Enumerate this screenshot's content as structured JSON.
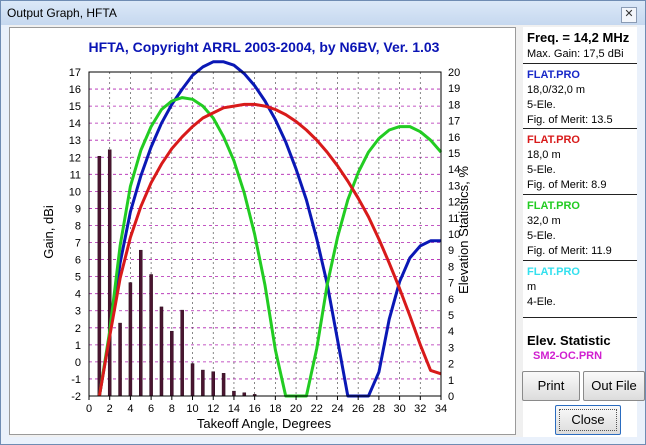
{
  "window": {
    "title": "Output Graph, HFTA",
    "close_glyph": "✕"
  },
  "chart_data": {
    "type": "line",
    "title": "HFTA, Copyright ARRL 2003-2004, by N6BV, Ver. 1.03",
    "xlabel": "Takeoff Angle, Degrees",
    "ylabel": "Gain, dBi",
    "y2label": "Elevation Statistics, %",
    "xlim": [
      0,
      34
    ],
    "ylim": [
      -2,
      17
    ],
    "y2lim": [
      0,
      20
    ],
    "x_ticks": [
      0,
      2,
      4,
      6,
      8,
      10,
      12,
      14,
      16,
      18,
      20,
      22,
      24,
      26,
      28,
      30,
      32,
      34
    ],
    "y_ticks": [
      -2,
      -1,
      0,
      1,
      2,
      3,
      4,
      5,
      6,
      7,
      8,
      9,
      10,
      11,
      12,
      13,
      14,
      15,
      16,
      17
    ],
    "y2_ticks": [
      0,
      1,
      2,
      3,
      4,
      5,
      6,
      7,
      8,
      9,
      10,
      11,
      12,
      13,
      14,
      15,
      16,
      17,
      18,
      19,
      20
    ],
    "grid": true,
    "series": [
      {
        "color": "#0a18b5",
        "x": [
          1,
          2,
          3,
          4,
          5,
          6,
          7,
          8,
          9,
          10,
          11,
          12,
          13,
          14,
          15,
          16,
          17,
          18,
          19,
          20,
          21,
          22,
          23,
          24,
          25,
          26,
          27,
          28,
          29,
          30,
          31,
          32,
          33,
          34
        ],
        "y": [
          -2,
          1.6,
          5.8,
          8.8,
          10.9,
          12.6,
          14.0,
          15.1,
          16.0,
          16.8,
          17.3,
          17.6,
          17.6,
          17.4,
          16.9,
          16.2,
          15.3,
          14.2,
          12.9,
          11.3,
          9.5,
          7.2,
          4.6,
          1.3,
          -2,
          -2,
          -2,
          -0.6,
          2.5,
          4.7,
          6.1,
          6.8,
          7.1,
          7.1
        ]
      },
      {
        "color": "#22cc22",
        "x": [
          1,
          2,
          3,
          4,
          5,
          6,
          7,
          8,
          9,
          10,
          11,
          12,
          13,
          14,
          15,
          16,
          17,
          18,
          19,
          20,
          21,
          22,
          23,
          24,
          25,
          26,
          27,
          28,
          29,
          30,
          31,
          32,
          33,
          34
        ],
        "y": [
          -2,
          1.8,
          6.8,
          10.3,
          12.4,
          13.8,
          14.8,
          15.3,
          15.5,
          15.4,
          15.0,
          14.3,
          13.2,
          11.8,
          9.9,
          7.5,
          4.5,
          0.7,
          -2,
          -2,
          -2,
          0.8,
          4.5,
          7.3,
          9.5,
          11.1,
          12.3,
          13.1,
          13.6,
          13.8,
          13.8,
          13.5,
          13.0,
          12.3
        ]
      },
      {
        "color": "#d81a1a",
        "x": [
          1,
          2,
          3,
          4,
          5,
          6,
          7,
          8,
          9,
          10,
          11,
          12,
          13,
          14,
          15,
          16,
          17,
          18,
          19,
          20,
          21,
          22,
          23,
          24,
          25,
          26,
          27,
          28,
          29,
          30,
          31,
          32,
          33,
          34
        ],
        "y": [
          -2,
          1.5,
          4.9,
          7.3,
          9.1,
          10.5,
          11.6,
          12.5,
          13.2,
          13.8,
          14.3,
          14.6,
          14.9,
          15.0,
          15.1,
          15.1,
          15.0,
          14.8,
          14.5,
          14.1,
          13.6,
          13.0,
          12.3,
          11.5,
          10.6,
          9.6,
          8.5,
          7.2,
          5.8,
          4.3,
          2.7,
          1.0,
          -0.5,
          -0.7
        ]
      }
    ],
    "bars": {
      "color": "#4a1530",
      "x": [
        1,
        2,
        3,
        4,
        5,
        6,
        7,
        8,
        9,
        10,
        11,
        12,
        13,
        14,
        15,
        16
      ],
      "values": [
        14.8,
        15.2,
        4.5,
        7.0,
        9.0,
        7.5,
        5.5,
        4.0,
        5.3,
        2.0,
        1.6,
        1.5,
        1.4,
        0.3,
        0.2,
        0.1
      ]
    }
  },
  "panel": {
    "freq": "Freq. = 14,2 MHz",
    "max_gain": "Max. Gain: 17,5 dBi",
    "antennas": [
      {
        "name": "FLAT.PRO",
        "color": "#1828c8",
        "height": "18,0/32,0 m",
        "type": "5-Ele.",
        "merit": "Fig. of Merit:  13.5"
      },
      {
        "name": "FLAT.PRO",
        "color": "#d81a1a",
        "height": "18,0 m",
        "type": "5-Ele.",
        "merit": "Fig. of Merit:  8.9"
      },
      {
        "name": "FLAT.PRO",
        "color": "#22cc22",
        "height": "32,0 m",
        "type": "5-Ele.",
        "merit": "Fig. of Merit:  11.9"
      },
      {
        "name": "FLAT.PRO",
        "color": "#33e0ee",
        "height": " m",
        "type": "4-Ele.",
        "merit": ""
      }
    ],
    "elev_title": "Elev. Statistic",
    "elev_file": "SM2-OC.PRN",
    "elev_file_color": "#d020d0"
  },
  "buttons": {
    "print": "Print",
    "out_file": "Out File",
    "close": "Close"
  }
}
